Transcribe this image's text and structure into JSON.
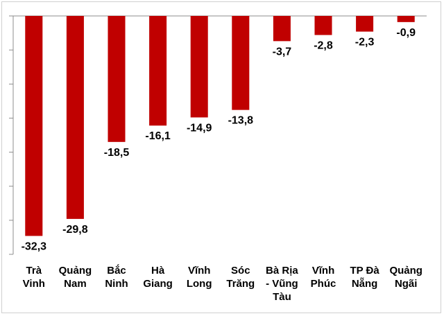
{
  "chart_data": {
    "type": "bar",
    "categories": [
      [
        "Trà",
        "Vinh"
      ],
      [
        "Quảng",
        "Nam"
      ],
      [
        "Bắc",
        "Ninh"
      ],
      [
        "Hà",
        "Giang"
      ],
      [
        "Vĩnh",
        "Long"
      ],
      [
        "Sóc",
        "Trăng"
      ],
      [
        "Bà Rịa",
        "- Vũng",
        "Tàu"
      ],
      [
        "Vĩnh",
        "Phúc"
      ],
      [
        "TP Đà",
        "Nẵng"
      ],
      [
        "Quảng",
        "Ngãi"
      ]
    ],
    "values": [
      -32.3,
      -29.8,
      -18.5,
      -16.1,
      -14.9,
      -13.8,
      -3.7,
      -2.8,
      -2.3,
      -0.9
    ],
    "value_labels": [
      "-32,3",
      "-29,8",
      "-18,5",
      "-16,1",
      "-14,9",
      "-13,8",
      "-3,7",
      "-2,8",
      "-2,3",
      "-0,9"
    ],
    "ylim": [
      -35,
      0
    ],
    "grid": false,
    "bar_color": "#c00000",
    "axis_color": "#8c8c8c"
  }
}
